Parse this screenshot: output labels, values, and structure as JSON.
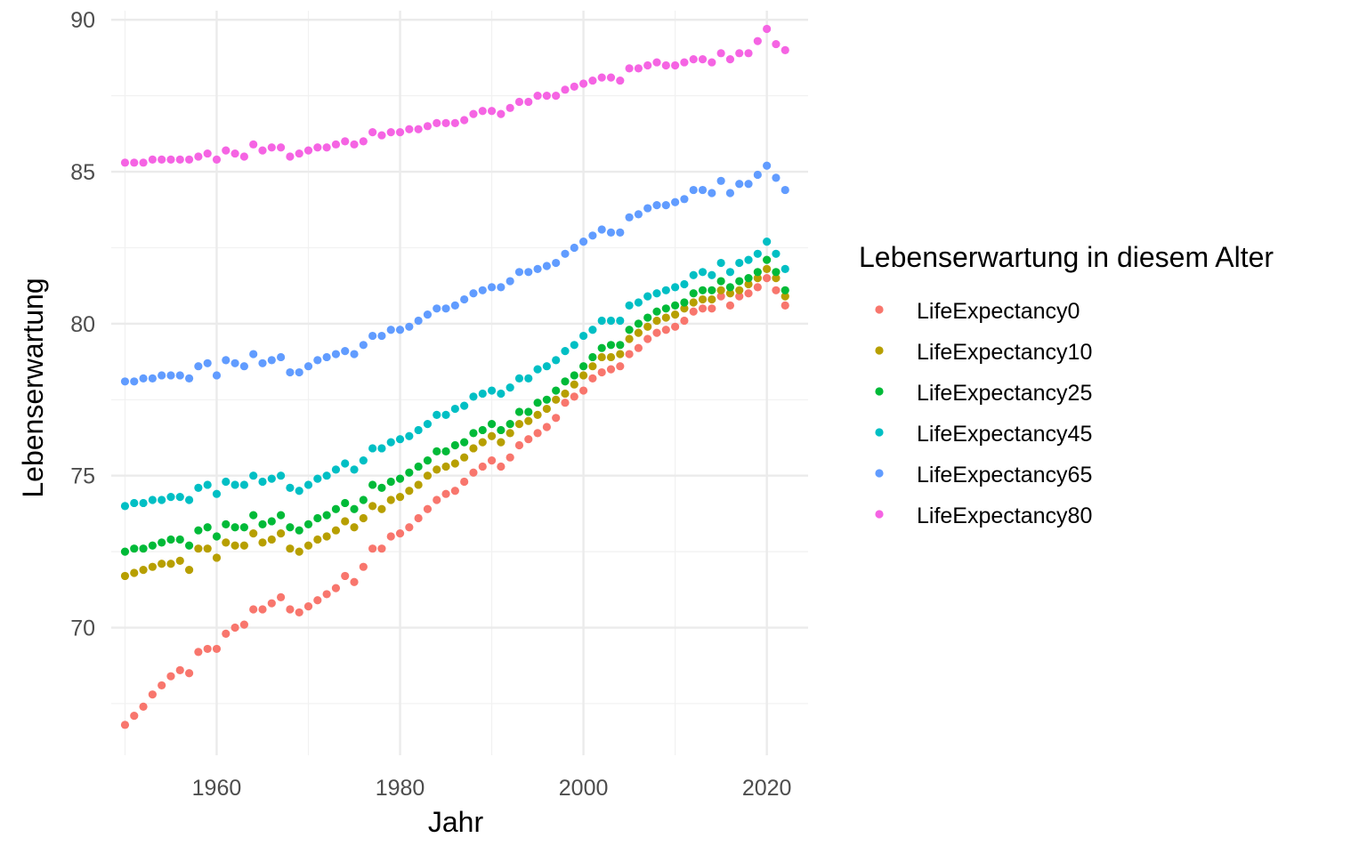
{
  "chart_data": {
    "type": "scatter",
    "xlabel": "Jahr",
    "ylabel": "Lebenserwartung",
    "xlim": [
      1948.5,
      2024.5
    ],
    "ylim": [
      65.8,
      90.3
    ],
    "x_ticks": [
      1960,
      1980,
      2000,
      2020
    ],
    "y_ticks": [
      70,
      75,
      80,
      85,
      90
    ],
    "grid": true,
    "legend": {
      "title": "Lebenserwartung in diesem Alter",
      "position": "right"
    },
    "x_start": 1950,
    "series": [
      {
        "name": "LifeExpectancy0",
        "color": "#F8766D",
        "values": [
          66.8,
          67.1,
          67.4,
          67.8,
          68.1,
          68.4,
          68.6,
          68.5,
          69.2,
          69.3,
          69.3,
          69.8,
          70.0,
          70.1,
          70.6,
          70.6,
          70.8,
          71.0,
          70.6,
          70.5,
          70.7,
          70.9,
          71.1,
          71.3,
          71.7,
          71.5,
          72.0,
          72.6,
          72.6,
          73.0,
          73.1,
          73.3,
          73.6,
          73.9,
          74.2,
          74.4,
          74.5,
          74.8,
          75.1,
          75.3,
          75.5,
          75.3,
          75.6,
          76.0,
          76.2,
          76.4,
          76.6,
          76.9,
          77.4,
          77.6,
          77.8,
          78.2,
          78.4,
          78.5,
          78.6,
          79.0,
          79.2,
          79.5,
          79.7,
          79.8,
          79.9,
          80.1,
          80.4,
          80.5,
          80.5,
          80.9,
          80.6,
          80.9,
          81.0,
          81.2,
          81.5,
          81.1,
          80.6
        ]
      },
      {
        "name": "LifeExpectancy10",
        "color": "#B79F00",
        "values": [
          71.7,
          71.8,
          71.9,
          72.0,
          72.1,
          72.1,
          72.2,
          71.9,
          72.6,
          72.6,
          72.3,
          72.8,
          72.7,
          72.7,
          73.1,
          72.8,
          72.9,
          73.1,
          72.6,
          72.5,
          72.7,
          72.9,
          73.0,
          73.2,
          73.5,
          73.3,
          73.6,
          74.0,
          73.9,
          74.2,
          74.3,
          74.5,
          74.7,
          75.0,
          75.2,
          75.3,
          75.4,
          75.6,
          75.9,
          76.1,
          76.3,
          76.1,
          76.4,
          76.7,
          76.8,
          77.0,
          77.2,
          77.5,
          77.7,
          78.0,
          78.3,
          78.6,
          78.9,
          78.9,
          79.0,
          79.5,
          79.7,
          79.9,
          80.1,
          80.2,
          80.3,
          80.5,
          80.7,
          80.8,
          80.8,
          81.1,
          81.0,
          81.1,
          81.3,
          81.5,
          81.8,
          81.5,
          80.9
        ]
      },
      {
        "name": "LifeExpectancy25",
        "color": "#00BA38",
        "values": [
          72.5,
          72.6,
          72.6,
          72.7,
          72.8,
          72.9,
          72.9,
          72.7,
          73.2,
          73.3,
          73.0,
          73.4,
          73.3,
          73.3,
          73.7,
          73.4,
          73.5,
          73.7,
          73.3,
          73.2,
          73.4,
          73.6,
          73.7,
          73.9,
          74.1,
          73.9,
          74.2,
          74.7,
          74.6,
          74.8,
          74.9,
          75.1,
          75.3,
          75.5,
          75.8,
          75.8,
          76.0,
          76.1,
          76.4,
          76.5,
          76.7,
          76.5,
          76.7,
          77.1,
          77.1,
          77.4,
          77.5,
          77.8,
          78.1,
          78.3,
          78.6,
          78.9,
          79.2,
          79.3,
          79.3,
          79.8,
          80.0,
          80.2,
          80.4,
          80.5,
          80.6,
          80.7,
          81.0,
          81.1,
          81.1,
          81.4,
          81.2,
          81.4,
          81.5,
          81.7,
          82.1,
          81.7,
          81.1
        ]
      },
      {
        "name": "LifeExpectancy45",
        "color": "#00BFC4",
        "values": [
          74.0,
          74.1,
          74.1,
          74.2,
          74.2,
          74.3,
          74.3,
          74.2,
          74.6,
          74.7,
          74.4,
          74.8,
          74.7,
          74.7,
          75.0,
          74.8,
          74.9,
          75.0,
          74.6,
          74.5,
          74.7,
          74.9,
          75.0,
          75.2,
          75.4,
          75.2,
          75.5,
          75.9,
          75.9,
          76.1,
          76.2,
          76.3,
          76.5,
          76.7,
          77.0,
          77.0,
          77.2,
          77.3,
          77.6,
          77.7,
          77.8,
          77.7,
          77.9,
          78.2,
          78.2,
          78.5,
          78.6,
          78.8,
          79.1,
          79.3,
          79.6,
          79.8,
          80.1,
          80.1,
          80.1,
          80.6,
          80.7,
          80.9,
          81.0,
          81.1,
          81.2,
          81.3,
          81.6,
          81.7,
          81.6,
          82.0,
          81.7,
          82.0,
          82.1,
          82.3,
          82.7,
          82.3,
          81.8
        ]
      },
      {
        "name": "LifeExpectancy65",
        "color": "#619CFF",
        "values": [
          78.1,
          78.1,
          78.2,
          78.2,
          78.3,
          78.3,
          78.3,
          78.2,
          78.6,
          78.7,
          78.3,
          78.8,
          78.7,
          78.6,
          79.0,
          78.7,
          78.8,
          78.9,
          78.4,
          78.4,
          78.6,
          78.8,
          78.9,
          79.0,
          79.1,
          79.0,
          79.3,
          79.6,
          79.6,
          79.8,
          79.8,
          79.9,
          80.1,
          80.3,
          80.5,
          80.5,
          80.6,
          80.8,
          81.0,
          81.1,
          81.2,
          81.2,
          81.4,
          81.7,
          81.7,
          81.8,
          81.9,
          82.0,
          82.3,
          82.5,
          82.7,
          82.9,
          83.1,
          83.0,
          83.0,
          83.5,
          83.6,
          83.8,
          83.9,
          83.9,
          84.0,
          84.1,
          84.4,
          84.4,
          84.3,
          84.7,
          84.3,
          84.6,
          84.6,
          84.9,
          85.2,
          84.8,
          84.4
        ]
      },
      {
        "name": "LifeExpectancy80",
        "color": "#F564E3",
        "values": [
          85.3,
          85.3,
          85.3,
          85.4,
          85.4,
          85.4,
          85.4,
          85.4,
          85.5,
          85.6,
          85.4,
          85.7,
          85.6,
          85.5,
          85.9,
          85.7,
          85.8,
          85.8,
          85.5,
          85.6,
          85.7,
          85.8,
          85.8,
          85.9,
          86.0,
          85.9,
          86.0,
          86.3,
          86.2,
          86.3,
          86.3,
          86.4,
          86.4,
          86.5,
          86.6,
          86.6,
          86.6,
          86.7,
          86.9,
          87.0,
          87.0,
          86.9,
          87.1,
          87.3,
          87.3,
          87.5,
          87.5,
          87.5,
          87.7,
          87.8,
          87.9,
          88.0,
          88.1,
          88.1,
          88.0,
          88.4,
          88.4,
          88.5,
          88.6,
          88.5,
          88.5,
          88.6,
          88.7,
          88.7,
          88.6,
          88.9,
          88.7,
          88.9,
          88.9,
          89.3,
          89.7,
          89.2,
          89.0
        ]
      }
    ]
  }
}
